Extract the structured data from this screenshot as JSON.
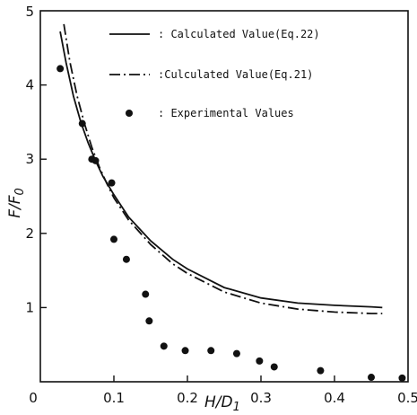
{
  "chart_data": {
    "type": "line",
    "xlabel": "H/D1",
    "ylabel": "F/F0",
    "xlim": [
      0,
      0.5
    ],
    "ylim": [
      0,
      5
    ],
    "x_ticks": [
      0,
      0.1,
      0.2,
      0.3,
      0.4,
      0.5
    ],
    "x_tick_labels": [
      "0",
      "0.1",
      "0.2",
      "0.3",
      "0.4",
      "0.5"
    ],
    "y_ticks": [
      0,
      1,
      2,
      3,
      4,
      5
    ],
    "y_tick_labels": [
      "0",
      "1",
      "2",
      "3",
      "4",
      "5"
    ],
    "grid": false,
    "legend_position": "top-right",
    "series": [
      {
        "name": ": Calculated Value(Eq.22)",
        "style": "solid",
        "x": [
          0.027,
          0.035,
          0.045,
          0.055,
          0.065,
          0.075,
          0.085,
          0.1,
          0.12,
          0.15,
          0.18,
          0.2,
          0.25,
          0.3,
          0.35,
          0.4,
          0.45,
          0.465
        ],
        "y": [
          4.72,
          4.3,
          3.85,
          3.5,
          3.22,
          2.98,
          2.77,
          2.52,
          2.22,
          1.9,
          1.65,
          1.52,
          1.27,
          1.13,
          1.06,
          1.03,
          1.01,
          1.0
        ]
      },
      {
        "name": ":Culculated Value(Eq.21)",
        "style": "dash-dot",
        "x": [
          0.032,
          0.04,
          0.05,
          0.06,
          0.07,
          0.08,
          0.09,
          0.1,
          0.12,
          0.15,
          0.18,
          0.2,
          0.25,
          0.3,
          0.35,
          0.4,
          0.45,
          0.465
        ],
        "y": [
          4.82,
          4.32,
          3.85,
          3.48,
          3.16,
          2.9,
          2.68,
          2.48,
          2.18,
          1.85,
          1.59,
          1.46,
          1.21,
          1.06,
          0.98,
          0.94,
          0.92,
          0.92
        ]
      },
      {
        "name": ":  Experimental Values",
        "style": "points",
        "x": [
          0.027,
          0.057,
          0.07,
          0.075,
          0.097,
          0.1,
          0.117,
          0.143,
          0.148,
          0.168,
          0.197,
          0.232,
          0.267,
          0.298,
          0.318,
          0.381,
          0.45,
          0.492
        ],
        "y": [
          4.22,
          3.48,
          3.0,
          2.98,
          2.68,
          1.92,
          1.65,
          1.18,
          0.82,
          0.48,
          0.42,
          0.42,
          0.38,
          0.28,
          0.2,
          0.15,
          0.06,
          0.05
        ]
      }
    ]
  }
}
